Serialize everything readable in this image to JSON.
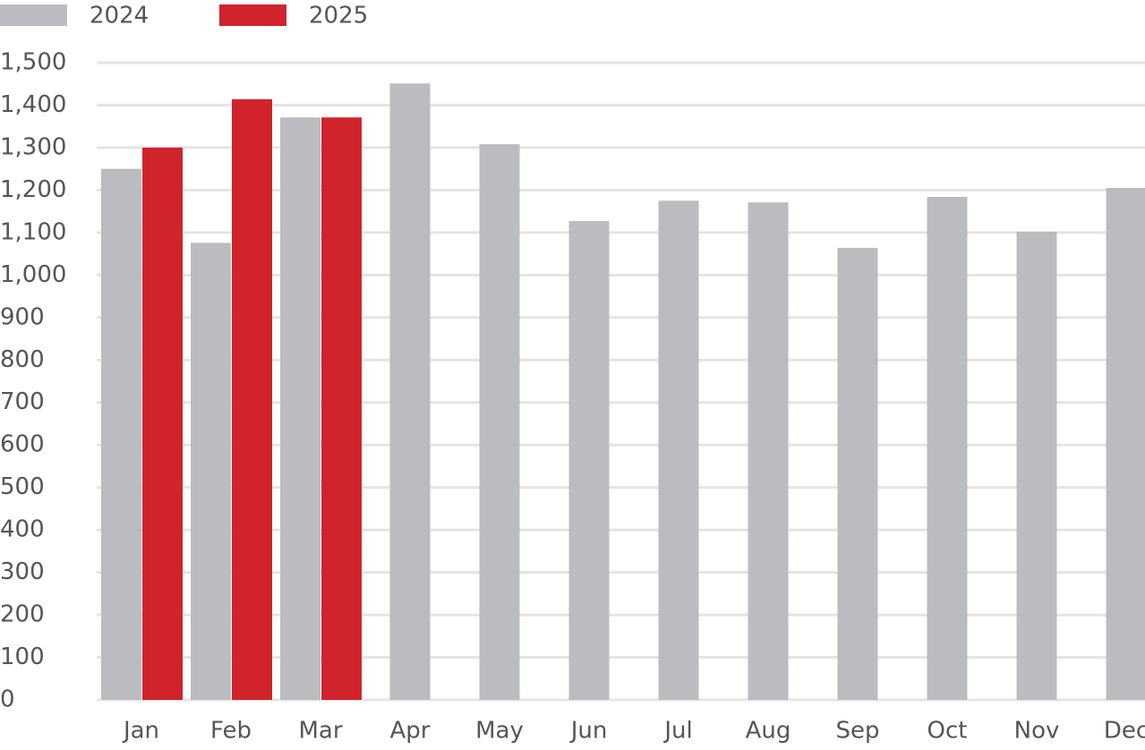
{
  "chart_data": {
    "type": "bar",
    "categories": [
      "Jan",
      "Feb",
      "Mar",
      "Apr",
      "May",
      "Jun",
      "Jul",
      "Aug",
      "Sep",
      "Oct",
      "Nov",
      "Dec"
    ],
    "series": [
      {
        "name": "2024",
        "color": "#bbbcc0",
        "values": [
          1250,
          1076,
          1371,
          1451,
          1308,
          1127,
          1175,
          1171,
          1064,
          1184,
          1102,
          1205
        ]
      },
      {
        "name": "2025",
        "color": "#d0232b",
        "values": [
          1300,
          1414,
          1371,
          null,
          null,
          null,
          null,
          null,
          null,
          null,
          null,
          null
        ]
      }
    ],
    "ylim": [
      0,
      1500
    ],
    "yticks": [
      0,
      100,
      200,
      300,
      400,
      500,
      600,
      700,
      800,
      900,
      {
        "value": 1000,
        "label": "1,000"
      },
      {
        "value": 1100,
        "label": "1,100"
      },
      {
        "value": 1200,
        "label": "1,200"
      },
      {
        "value": 1300,
        "label": "1,300"
      },
      {
        "value": 1400,
        "label": "1,400"
      },
      {
        "value": 1500,
        "label": "1,500"
      }
    ],
    "grid": true,
    "legend": "top-left"
  }
}
